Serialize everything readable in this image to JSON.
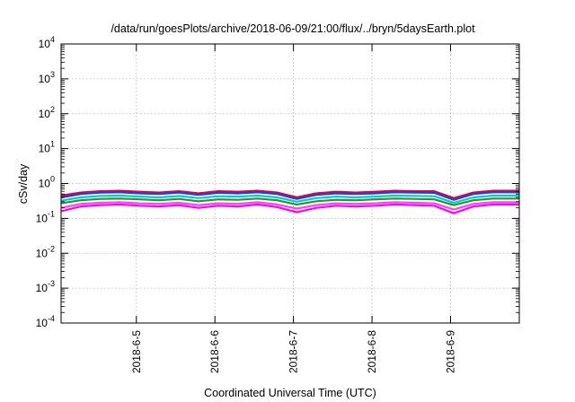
{
  "chart_data": {
    "type": "line",
    "title": "/data/run/goesPlots/archive/2018-06-09/21:00/flux/../bryn/5daysEarth.plot",
    "xlabel": "Coordinated Universal Time (UTC)",
    "ylabel": "cSv/day",
    "yscale": "log",
    "ylim": [
      0.0001,
      10000
    ],
    "xlim": [
      "2018-06-04 01:00",
      "2018-06-09 21:00"
    ],
    "x_ticks": [
      "2018-6-5",
      "2018-6-6",
      "2018-6-7",
      "2018-6-8",
      "2018-6-9"
    ],
    "y_ticks": [
      {
        "base": "10",
        "exp": "-4",
        "value": 0.0001
      },
      {
        "base": "10",
        "exp": "-3",
        "value": 0.001
      },
      {
        "base": "10",
        "exp": "-2",
        "value": 0.01
      },
      {
        "base": "10",
        "exp": "-1",
        "value": 0.1
      },
      {
        "base": "10",
        "exp": "0",
        "value": 1
      },
      {
        "base": "10",
        "exp": "1",
        "value": 10
      },
      {
        "base": "10",
        "exp": "2",
        "value": 100
      },
      {
        "base": "10",
        "exp": "3",
        "value": 1000
      },
      {
        "base": "10",
        "exp": "4",
        "value": 10000
      }
    ],
    "grid": true,
    "legend": "none",
    "x": [
      "2018-06-04 01:00",
      "2018-06-04 07:00",
      "2018-06-04 13:00",
      "2018-06-04 19:00",
      "2018-06-05 01:00",
      "2018-06-05 07:00",
      "2018-06-05 13:00",
      "2018-06-05 19:00",
      "2018-06-06 01:00",
      "2018-06-06 07:00",
      "2018-06-06 13:00",
      "2018-06-06 19:00",
      "2018-06-07 01:00",
      "2018-06-07 07:00",
      "2018-06-07 13:00",
      "2018-06-07 19:00",
      "2018-06-08 01:00",
      "2018-06-08 07:00",
      "2018-06-08 13:00",
      "2018-06-08 19:00",
      "2018-06-09 01:00",
      "2018-06-09 07:00",
      "2018-06-09 13:00",
      "2018-06-09 21:00"
    ],
    "series": [
      {
        "color": "#e8002a",
        "values": [
          0.45,
          0.55,
          0.6,
          0.62,
          0.58,
          0.55,
          0.6,
          0.52,
          0.6,
          0.58,
          0.62,
          0.55,
          0.4,
          0.52,
          0.58,
          0.55,
          0.58,
          0.62,
          0.6,
          0.6,
          0.38,
          0.55,
          0.62,
          0.62
        ]
      },
      {
        "color": "#2a3cd8",
        "values": [
          0.4,
          0.5,
          0.55,
          0.56,
          0.52,
          0.5,
          0.55,
          0.47,
          0.54,
          0.52,
          0.56,
          0.5,
          0.36,
          0.47,
          0.52,
          0.5,
          0.52,
          0.56,
          0.55,
          0.54,
          0.34,
          0.5,
          0.56,
          0.56
        ]
      },
      {
        "color": "#00c8e8",
        "values": [
          0.32,
          0.4,
          0.44,
          0.45,
          0.42,
          0.4,
          0.44,
          0.38,
          0.43,
          0.42,
          0.45,
          0.4,
          0.3,
          0.38,
          0.42,
          0.4,
          0.42,
          0.45,
          0.44,
          0.43,
          0.28,
          0.4,
          0.45,
          0.45
        ]
      },
      {
        "color": "#18a018",
        "values": [
          0.27,
          0.33,
          0.36,
          0.37,
          0.35,
          0.33,
          0.36,
          0.31,
          0.35,
          0.34,
          0.37,
          0.33,
          0.25,
          0.31,
          0.34,
          0.33,
          0.35,
          0.37,
          0.36,
          0.35,
          0.24,
          0.33,
          0.37,
          0.37
        ]
      },
      {
        "color": "#ff40ff",
        "values": [
          0.2,
          0.26,
          0.28,
          0.29,
          0.27,
          0.26,
          0.28,
          0.24,
          0.27,
          0.26,
          0.29,
          0.25,
          0.19,
          0.24,
          0.27,
          0.26,
          0.27,
          0.29,
          0.28,
          0.27,
          0.18,
          0.26,
          0.29,
          0.29
        ]
      },
      {
        "color": "#ff00ff",
        "values": [
          0.16,
          0.22,
          0.24,
          0.25,
          0.23,
          0.22,
          0.24,
          0.2,
          0.23,
          0.22,
          0.25,
          0.21,
          0.15,
          0.2,
          0.23,
          0.22,
          0.23,
          0.25,
          0.24,
          0.23,
          0.14,
          0.22,
          0.25,
          0.25
        ]
      }
    ]
  }
}
